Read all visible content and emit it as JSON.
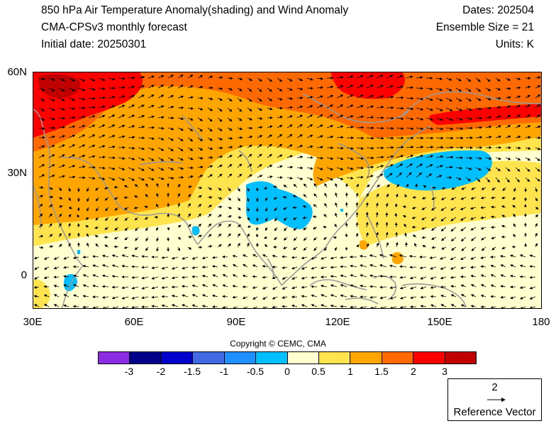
{
  "header": {
    "title": "850 hPa Air Temperature Anomaly(shading) and Wind Anomaly",
    "model": "CMA-CPSv3 monthly forecast",
    "initial_date": "Initial date: 20250301",
    "dates": "Dates: 202504",
    "ensemble": "Ensemble Size = 21",
    "units": "Units: K"
  },
  "map": {
    "lon_range": [
      30,
      180
    ],
    "lat_range": [
      -10,
      60
    ],
    "lat_ticks": [
      {
        "value": 60,
        "label": "60N"
      },
      {
        "value": 30,
        "label": "30N"
      },
      {
        "value": 0,
        "label": "0"
      }
    ],
    "lon_ticks": [
      {
        "value": 30,
        "label": "30E"
      },
      {
        "value": 60,
        "label": "60E"
      },
      {
        "value": 90,
        "label": "90E"
      },
      {
        "value": 120,
        "label": "120E"
      },
      {
        "value": 150,
        "label": "150E"
      },
      {
        "value": 180,
        "label": "180"
      }
    ]
  },
  "copyright": "Copyright © CEMC, CMA",
  "colorbar": {
    "colors": [
      "#8b2be2",
      "#00008b",
      "#0000cd",
      "#4169e1",
      "#1e90ff",
      "#00bfff",
      "#ffffd0",
      "#ffe44d",
      "#ffa500",
      "#ff6a00",
      "#ff0000",
      "#c00000"
    ],
    "labels": [
      "-3",
      "-2",
      "-1.5",
      "-1",
      "-0.5",
      "0",
      "0.5",
      "1",
      "1.5",
      "2",
      "3"
    ]
  },
  "reference_vector": {
    "magnitude": "2",
    "label": "Reference Vector"
  }
}
